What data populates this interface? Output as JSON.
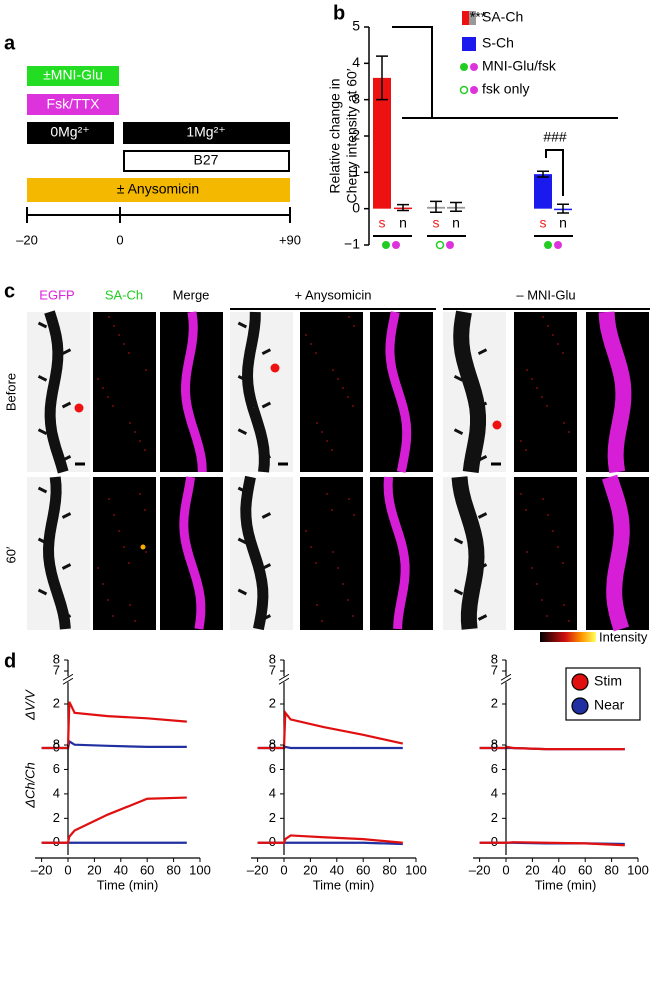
{
  "panel_a": {
    "letter": "a",
    "mni": "±MNI-Glu",
    "fsk": "Fsk/TTX",
    "mg0": "0Mg²⁺",
    "mg1": "1Mg²⁺",
    "b27": "B27",
    "aniso": "± Anysomicin",
    "ticks": [
      "–20",
      "0",
      "+90"
    ]
  },
  "panel_b": {
    "letter": "b"
  },
  "panel_c": {
    "letter": "c",
    "columns": [
      "EGFP",
      "SA-Ch",
      "Merge"
    ],
    "groups": [
      "+ Anysomicin",
      "– MNI-Glu"
    ],
    "rows": [
      "Before",
      "60′"
    ],
    "colorbar": "Intensity"
  },
  "panel_d": {
    "letter": "d"
  },
  "chart_data": [
    {
      "type": "bar",
      "ylabel": [
        "Relative change in",
        "Cherry intensity at 60′"
      ],
      "categories": [
        "s",
        "n",
        "s",
        "n",
        "s",
        "n"
      ],
      "category_colors": [
        "#ee2222",
        "#000000",
        "#ee2222",
        "#000000",
        "#ee2222",
        "#000000"
      ],
      "values": [
        3.6,
        0.03,
        0.05,
        0.05,
        0.95,
        0.0
      ],
      "errors": [
        0.6,
        0.08,
        0.15,
        0.12,
        0.08,
        0.12
      ],
      "colors": [
        "#ee1111",
        "#ee1111",
        "#999999",
        "#999999",
        "#1a1aee",
        "#1a1aee"
      ],
      "ylim": [
        -1,
        5
      ],
      "yticks": [
        {
          "value": -1,
          "label": "−1"
        },
        0,
        1,
        2,
        3,
        4,
        5
      ],
      "legend": [
        "SA-Ch",
        "S-Ch",
        "MNI-Glu/fsk",
        "fsk only"
      ],
      "annotations": [
        "***",
        "###"
      ]
    },
    {
      "type": "line",
      "ylabel": "ΔV/V",
      "x": [
        -20,
        0,
        1,
        5,
        30,
        60,
        90
      ],
      "xlim": [
        -25,
        100
      ],
      "ylim": [
        -1,
        8
      ],
      "yticks": [
        0,
        2,
        7,
        8
      ],
      "ybreak": [
        3,
        6.5
      ],
      "series": [
        {
          "color": "#e01010",
          "values": [
            0,
            0,
            2.1,
            1.6,
            1.45,
            1.35,
            1.2
          ]
        },
        {
          "color": "#2030a0",
          "values": [
            0,
            0,
            0.3,
            0.15,
            0.1,
            0.05,
            0.05
          ]
        }
      ]
    },
    {
      "type": "line",
      "x": [
        -20,
        0,
        1,
        5,
        30,
        60,
        90
      ],
      "xlim": [
        -25,
        100
      ],
      "ylim": [
        -1,
        8
      ],
      "yticks": [
        0,
        2,
        7,
        8
      ],
      "ybreak": [
        3,
        6.5
      ],
      "series": [
        {
          "color": "#e01010",
          "values": [
            0,
            0,
            1.6,
            1.3,
            0.95,
            0.6,
            0.2
          ]
        },
        {
          "color": "#2030a0",
          "values": [
            0,
            0,
            0.05,
            0,
            0,
            0,
            0
          ]
        }
      ]
    },
    {
      "type": "line",
      "x": [
        -20,
        0,
        1,
        5,
        30,
        60,
        90
      ],
      "xlim": [
        -25,
        100
      ],
      "ylim": [
        -1,
        8
      ],
      "yticks": [
        0,
        2,
        7,
        8
      ],
      "ybreak": [
        3,
        6.5
      ],
      "series": [
        {
          "name": "Stim",
          "color": "#e01010",
          "values": [
            0,
            0,
            0.05,
            0,
            -0.05,
            -0.05,
            -0.05
          ]
        },
        {
          "name": "Near",
          "color": "#2030a0",
          "values": [
            0,
            0,
            0,
            0,
            -0.05,
            -0.05,
            -0.05
          ]
        }
      ]
    },
    {
      "type": "line",
      "ylabel": "ΔCh/Ch",
      "xlabel": "Time (min)",
      "x": [
        -20,
        0,
        1,
        5,
        30,
        60,
        90
      ],
      "xlim": [
        -25,
        100
      ],
      "ylim": [
        -1,
        8
      ],
      "xticks": [
        {
          "value": -20,
          "label": "–20"
        },
        0,
        20,
        40,
        60,
        80,
        100
      ],
      "yticks": [
        0,
        2,
        4,
        6,
        8
      ],
      "series": [
        {
          "color": "#e01010",
          "values": [
            0,
            0,
            0.5,
            1.0,
            2.3,
            3.6,
            3.7
          ]
        },
        {
          "color": "#2030a0",
          "values": [
            0,
            0,
            0,
            0,
            0,
            0,
            0
          ]
        }
      ]
    },
    {
      "type": "line",
      "xlabel": "Time (min)",
      "x": [
        -20,
        0,
        1,
        5,
        30,
        60,
        90
      ],
      "xlim": [
        -25,
        100
      ],
      "ylim": [
        -1,
        8
      ],
      "xticks": [
        {
          "value": -20,
          "label": "–20"
        },
        0,
        20,
        40,
        60,
        80,
        100
      ],
      "yticks": [
        0,
        2,
        4,
        6,
        8
      ],
      "series": [
        {
          "color": "#e01010",
          "values": [
            0,
            0,
            0.3,
            0.6,
            0.45,
            0.3,
            0.0
          ]
        },
        {
          "color": "#2030a0",
          "values": [
            0,
            0,
            0,
            0,
            0,
            0,
            -0.1
          ]
        }
      ]
    },
    {
      "type": "line",
      "xlabel": "Time (min)",
      "x": [
        -20,
        0,
        1,
        5,
        30,
        60,
        90
      ],
      "xlim": [
        -25,
        100
      ],
      "ylim": [
        -1,
        8
      ],
      "xticks": [
        {
          "value": -20,
          "label": "–20"
        },
        0,
        20,
        40,
        60,
        80,
        100
      ],
      "yticks": [
        0,
        2,
        4,
        6,
        8
      ],
      "series": [
        {
          "color": "#e01010",
          "values": [
            0,
            0,
            0,
            0.05,
            0,
            -0.05,
            -0.2
          ]
        },
        {
          "color": "#2030a0",
          "values": [
            0,
            0,
            0,
            0,
            -0.05,
            -0.05,
            -0.1
          ]
        }
      ]
    }
  ]
}
